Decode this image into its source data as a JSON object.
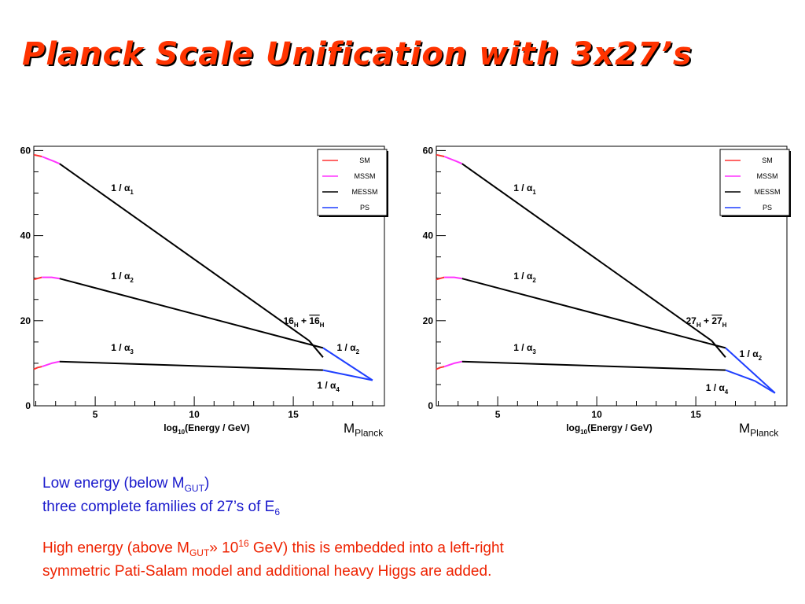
{
  "slide": {
    "title": "Planck Scale Unification with 3x27’s",
    "m_planck_main": "M",
    "m_planck_sub": "Planck",
    "low_energy": {
      "line1_pre": "Low energy (below M",
      "line1_sub": "GUT",
      "line1_post": ")",
      "line2_pre": "three complete families of 27’s of E",
      "line2_sub": "6"
    },
    "high_energy": {
      "t1": "High energy (above M",
      "sub": "GUT",
      "t2": "» 10",
      "sup": "16",
      "t3": " GeV) this is embedded into a left-right",
      "line2": "symmetric Pati-Salam model and additional heavy Higgs are added."
    }
  },
  "chart_data": [
    {
      "type": "line",
      "xlabel": "log10(Energy / GeV)",
      "xlim": [
        1.9,
        19.6
      ],
      "ylim": [
        0,
        61
      ],
      "x_ticks": [
        5,
        10,
        15
      ],
      "y_ticks": [
        0,
        20,
        40,
        60
      ],
      "grid": false,
      "legend_position": "top-right",
      "legend": [
        {
          "name": "SM",
          "color": "#ff3333"
        },
        {
          "name": "MSSM",
          "color": "#ff33ff"
        },
        {
          "name": "MESSM",
          "color": "#000000"
        },
        {
          "name": "PS",
          "color": "#1f3fff"
        }
      ],
      "series": [
        {
          "name": "SM",
          "color": "#ff3333",
          "points": [
            [
              1.9,
              59.0
            ],
            [
              2.3,
              58.6
            ]
          ]
        },
        {
          "name": "SM",
          "color": "#ff3333",
          "points": [
            [
              1.9,
              29.7
            ],
            [
              2.3,
              30.2
            ]
          ]
        },
        {
          "name": "SM",
          "color": "#ff3333",
          "points": [
            [
              1.9,
              8.6
            ],
            [
              2.1,
              9.0
            ],
            [
              2.3,
              9.2
            ]
          ]
        },
        {
          "name": "MSSM",
          "color": "#ff33ff",
          "points": [
            [
              2.3,
              58.6
            ],
            [
              2.9,
              57.5
            ],
            [
              3.2,
              56.9
            ]
          ]
        },
        {
          "name": "MSSM",
          "color": "#ff33ff",
          "points": [
            [
              2.3,
              30.2
            ],
            [
              2.8,
              30.2
            ],
            [
              3.2,
              29.9
            ]
          ]
        },
        {
          "name": "MSSM",
          "color": "#ff33ff",
          "points": [
            [
              2.3,
              9.2
            ],
            [
              2.8,
              10.0
            ],
            [
              3.2,
              10.4
            ]
          ]
        },
        {
          "name": "MESSM",
          "color": "#000000",
          "points": [
            [
              3.2,
              56.9
            ],
            [
              15.8,
              15.3
            ],
            [
              16.5,
              11.4
            ]
          ]
        },
        {
          "name": "MESSM",
          "color": "#000000",
          "points": [
            [
              3.2,
              29.9
            ],
            [
              16.5,
              13.6
            ]
          ]
        },
        {
          "name": "MESSM",
          "color": "#000000",
          "points": [
            [
              3.2,
              10.4
            ],
            [
              16.5,
              8.4
            ]
          ]
        },
        {
          "name": "PS",
          "color": "#1f3fff",
          "points": [
            [
              16.5,
              13.6
            ],
            [
              19.0,
              6.0
            ]
          ]
        },
        {
          "name": "PS",
          "color": "#1f3fff",
          "points": [
            [
              16.5,
              8.4
            ],
            [
              19.0,
              6.0
            ]
          ]
        }
      ],
      "annotations": [
        {
          "text": "1 / α₁",
          "x": 5.8,
          "y": 50.5
        },
        {
          "text": "1 / α₂",
          "x": 5.8,
          "y": 29.8
        },
        {
          "text": "1 / α₃",
          "x": 5.8,
          "y": 12.9
        },
        {
          "text": "16H + 16H",
          "x": 14.5,
          "y": 19.2
        },
        {
          "text": "1 / α₂",
          "x": 17.2,
          "y": 12.9
        },
        {
          "text": "1 / α₄",
          "x": 16.2,
          "y": 4.1
        }
      ]
    },
    {
      "type": "line",
      "xlabel": "log10(Energy / GeV)",
      "xlim": [
        1.9,
        19.6
      ],
      "ylim": [
        0,
        61
      ],
      "x_ticks": [
        5,
        10,
        15
      ],
      "y_ticks": [
        0,
        20,
        40,
        60
      ],
      "grid": false,
      "legend_position": "top-right",
      "legend": [
        {
          "name": "SM",
          "color": "#ff3333"
        },
        {
          "name": "MSSM",
          "color": "#ff33ff"
        },
        {
          "name": "MESSM",
          "color": "#000000"
        },
        {
          "name": "PS",
          "color": "#1f3fff"
        }
      ],
      "series": [
        {
          "name": "SM",
          "color": "#ff3333",
          "points": [
            [
              1.9,
              59.0
            ],
            [
              2.3,
              58.6
            ]
          ]
        },
        {
          "name": "SM",
          "color": "#ff3333",
          "points": [
            [
              1.9,
              29.7
            ],
            [
              2.3,
              30.2
            ]
          ]
        },
        {
          "name": "SM",
          "color": "#ff3333",
          "points": [
            [
              1.9,
              8.6
            ],
            [
              2.1,
              9.0
            ],
            [
              2.3,
              9.2
            ]
          ]
        },
        {
          "name": "MSSM",
          "color": "#ff33ff",
          "points": [
            [
              2.3,
              58.6
            ],
            [
              2.9,
              57.5
            ],
            [
              3.2,
              56.9
            ]
          ]
        },
        {
          "name": "MSSM",
          "color": "#ff33ff",
          "points": [
            [
              2.3,
              30.2
            ],
            [
              2.8,
              30.2
            ],
            [
              3.2,
              29.9
            ]
          ]
        },
        {
          "name": "MSSM",
          "color": "#ff33ff",
          "points": [
            [
              2.3,
              9.2
            ],
            [
              2.8,
              10.0
            ],
            [
              3.2,
              10.4
            ]
          ]
        },
        {
          "name": "MESSM",
          "color": "#000000",
          "points": [
            [
              3.2,
              56.9
            ],
            [
              15.8,
              15.3
            ],
            [
              16.5,
              11.4
            ]
          ]
        },
        {
          "name": "MESSM",
          "color": "#000000",
          "points": [
            [
              3.2,
              29.9
            ],
            [
              16.5,
              13.6
            ]
          ]
        },
        {
          "name": "MESSM",
          "color": "#000000",
          "points": [
            [
              3.2,
              10.4
            ],
            [
              16.5,
              8.4
            ]
          ]
        },
        {
          "name": "PS",
          "color": "#1f3fff",
          "points": [
            [
              16.5,
              13.6
            ],
            [
              19.0,
              3.0
            ]
          ]
        },
        {
          "name": "PS",
          "color": "#1f3fff",
          "points": [
            [
              16.5,
              8.4
            ],
            [
              18.0,
              5.8
            ],
            [
              19.0,
              3.0
            ]
          ]
        }
      ],
      "annotations": [
        {
          "text": "1 / α₁",
          "x": 5.8,
          "y": 50.5
        },
        {
          "text": "1 / α₂",
          "x": 5.8,
          "y": 29.8
        },
        {
          "text": "1 / α₃",
          "x": 5.8,
          "y": 12.9
        },
        {
          "text": "27H + 27H",
          "x": 14.5,
          "y": 19.2
        },
        {
          "text": "1 / α₂",
          "x": 17.2,
          "y": 11.5
        },
        {
          "text": "1 / α₄",
          "x": 15.5,
          "y": 3.5
        }
      ]
    }
  ]
}
